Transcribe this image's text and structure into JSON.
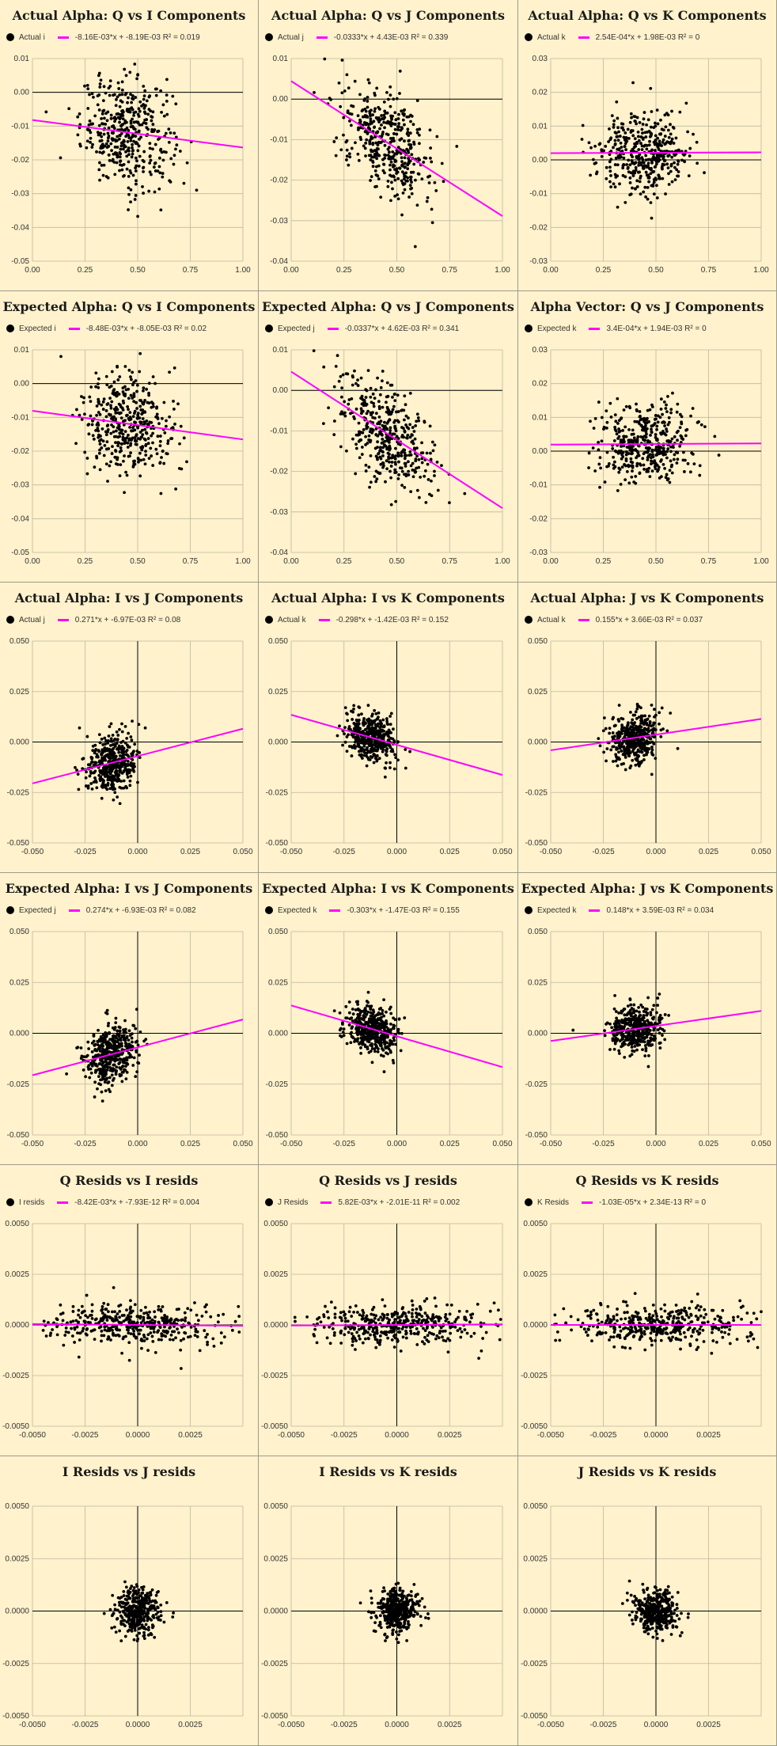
{
  "colors": {
    "background": "#fff2cc",
    "points": "#000000",
    "trendline": "#ff00ff",
    "grid": "#bdb7a0",
    "axis": "#000000"
  },
  "charts": [
    {
      "title": "Actual Alpha: Q vs I Components",
      "legend_series": "Actual i",
      "legend_trend": "-8.16E-03*x + -8.19E-03 R² = 0.019"
    },
    {
      "title": "Actual Alpha: Q vs J Components",
      "legend_series": "Actual j",
      "legend_trend": "-0.0333*x + 4.43E-03 R² = 0.339"
    },
    {
      "title": "Actual Alpha: Q vs K Components",
      "legend_series": "Actual k",
      "legend_trend": "2.54E-04*x + 1.98E-03 R² = 0"
    },
    {
      "title": "Expected Alpha: Q vs I Components",
      "legend_series": "Expected i",
      "legend_trend": "-8.48E-03*x + -8.05E-03 R² = 0.02"
    },
    {
      "title": "Expected Alpha: Q vs J Components",
      "legend_series": "Expected j",
      "legend_trend": "-0.0337*x + 4.62E-03 R² = 0.341"
    },
    {
      "title": "Alpha Vector: Q vs J Components",
      "legend_series": "Expected k",
      "legend_trend": "3.4E-04*x + 1.94E-03 R² = 0"
    },
    {
      "title": "Actual Alpha: I vs J Components",
      "legend_series": "Actual j",
      "legend_trend": "0.271*x + -6.97E-03 R² = 0.08"
    },
    {
      "title": "Actual Alpha: I vs K Components",
      "legend_series": "Actual k",
      "legend_trend": "-0.298*x + -1.42E-03 R² = 0.152"
    },
    {
      "title": "Actual Alpha: J vs K Components",
      "legend_series": "Actual k",
      "legend_trend": "0.155*x + 3.66E-03 R² = 0.037"
    },
    {
      "title": "Expected Alpha: I vs J Components",
      "legend_series": "Expected j",
      "legend_trend": "0.274*x + -6.93E-03 R² = 0.082"
    },
    {
      "title": "Expected Alpha: I vs K Components",
      "legend_series": "Expected k",
      "legend_trend": "-0.303*x + -1.47E-03 R² = 0.155"
    },
    {
      "title": "Expected Alpha: J vs K Components",
      "legend_series": "Expected k",
      "legend_trend": "0.148*x + 3.59E-03 R² = 0.034"
    },
    {
      "title": "Q Resids vs I resids",
      "legend_series": "I resids",
      "legend_trend": "-8.42E-03*x + -7.93E-12 R² = 0.004"
    },
    {
      "title": "Q Resids vs J resids",
      "legend_series": "J Resids",
      "legend_trend": "5.82E-03*x + -2.01E-11 R² = 0.002"
    },
    {
      "title": "Q Resids vs K resids",
      "legend_series": "K Resids",
      "legend_trend": "-1.03E-05*x + 2.34E-13 R² = 0"
    },
    {
      "title": "I Resids vs J resids",
      "legend_series": "",
      "legend_trend": ""
    },
    {
      "title": "I Resids vs K resids",
      "legend_series": "",
      "legend_trend": ""
    },
    {
      "title": "J Resids vs K resids",
      "legend_series": "",
      "legend_trend": ""
    }
  ],
  "chart_data": [
    {
      "type": "scatter",
      "title": "Actual Alpha: Q vs I Components",
      "series_name": "Actual i",
      "xlim": [
        0,
        1
      ],
      "ylim": [
        -0.05,
        0.01
      ],
      "xticks": [
        "0.00",
        "0.25",
        "0.50",
        "0.75",
        "1.00"
      ],
      "yticks": [
        "0.01",
        "0.00",
        "-0.01",
        "-0.02",
        "-0.03",
        "-0.04",
        "-0.05"
      ],
      "trendline": {
        "slope": -0.00816,
        "intercept": -0.00819,
        "r2": 0.019
      },
      "cloud": {
        "cx": 0.45,
        "sx": 0.11,
        "y0": -0.00819,
        "sy": 0.008,
        "n": 420
      }
    },
    {
      "type": "scatter",
      "title": "Actual Alpha: Q vs J Components",
      "series_name": "Actual j",
      "xlim": [
        0,
        1
      ],
      "ylim": [
        -0.04,
        0.01
      ],
      "xticks": [
        "0.00",
        "0.25",
        "0.50",
        "0.75",
        "1.00"
      ],
      "yticks": [
        "0.01",
        "0.00",
        "-0.01",
        "-0.02",
        "-0.03",
        "-0.04"
      ],
      "trendline": {
        "slope": -0.0333,
        "intercept": 0.00443,
        "r2": 0.339
      },
      "cloud": {
        "cx": 0.45,
        "sx": 0.11,
        "y0": 0.00443,
        "sy": 0.006,
        "n": 420
      }
    },
    {
      "type": "scatter",
      "title": "Actual Alpha: Q vs K Components",
      "series_name": "Actual k",
      "xlim": [
        0,
        1
      ],
      "ylim": [
        -0.03,
        0.03
      ],
      "xticks": [
        "0.00",
        "0.25",
        "0.50",
        "0.75",
        "1.00"
      ],
      "yticks": [
        "0.03",
        "0.02",
        "0.01",
        "0.00",
        "-0.01",
        "-0.02",
        "-0.03"
      ],
      "trendline": {
        "slope": 0.000254,
        "intercept": 0.00198,
        "r2": 0.0
      },
      "cloud": {
        "cx": 0.45,
        "sx": 0.11,
        "y0": 0.00198,
        "sy": 0.006,
        "n": 420
      }
    },
    {
      "type": "scatter",
      "title": "Expected Alpha: Q vs I Components",
      "series_name": "Expected i",
      "xlim": [
        0,
        1
      ],
      "ylim": [
        -0.05,
        0.01
      ],
      "xticks": [
        "0.00",
        "0.25",
        "0.50",
        "0.75",
        "1.00"
      ],
      "yticks": [
        "0.01",
        "0.00",
        "-0.01",
        "-0.02",
        "-0.03",
        "-0.04",
        "-0.05"
      ],
      "trendline": {
        "slope": -0.00848,
        "intercept": -0.00805,
        "r2": 0.02
      },
      "cloud": {
        "cx": 0.45,
        "sx": 0.11,
        "y0": -0.00805,
        "sy": 0.008,
        "n": 420
      }
    },
    {
      "type": "scatter",
      "title": "Expected Alpha: Q vs J Components",
      "series_name": "Expected j",
      "xlim": [
        0,
        1
      ],
      "ylim": [
        -0.04,
        0.01
      ],
      "xticks": [
        "0.00",
        "0.25",
        "0.50",
        "0.75",
        "1.00"
      ],
      "yticks": [
        "0.01",
        "0.00",
        "-0.01",
        "-0.02",
        "-0.03",
        "-0.04"
      ],
      "trendline": {
        "slope": -0.0337,
        "intercept": 0.00462,
        "r2": 0.341
      },
      "cloud": {
        "cx": 0.45,
        "sx": 0.11,
        "y0": 0.00462,
        "sy": 0.006,
        "n": 420
      }
    },
    {
      "type": "scatter",
      "title": "Alpha Vector: Q vs J Components",
      "series_name": "Expected k",
      "xlim": [
        0,
        1
      ],
      "ylim": [
        -0.03,
        0.03
      ],
      "xticks": [
        "0.00",
        "0.25",
        "0.50",
        "0.75",
        "1.00"
      ],
      "yticks": [
        "0.03",
        "0.02",
        "0.01",
        "0.00",
        "-0.01",
        "-0.02",
        "-0.03"
      ],
      "trendline": {
        "slope": 0.00034,
        "intercept": 0.00194,
        "r2": 0.0
      },
      "cloud": {
        "cx": 0.45,
        "sx": 0.11,
        "y0": 0.00194,
        "sy": 0.006,
        "n": 420
      }
    },
    {
      "type": "scatter",
      "title": "Actual Alpha: I vs J Components",
      "series_name": "Actual j",
      "xlim": [
        -0.05,
        0.05
      ],
      "ylim": [
        -0.05,
        0.05
      ],
      "xticks": [
        "-0.050",
        "-0.025",
        "0.000",
        "0.025",
        "0.050"
      ],
      "yticks": [
        "0.050",
        "0.025",
        "0.000",
        "-0.025",
        "-0.050"
      ],
      "trendline": {
        "slope": 0.271,
        "intercept": -0.00697,
        "r2": 0.08
      },
      "cloud": {
        "cx": -0.012,
        "sx": 0.006,
        "y0": -0.00697,
        "sy": 0.007,
        "n": 420
      }
    },
    {
      "type": "scatter",
      "title": "Actual Alpha: I vs K Components",
      "series_name": "Actual k",
      "xlim": [
        -0.05,
        0.05
      ],
      "ylim": [
        -0.05,
        0.05
      ],
      "xticks": [
        "-0.050",
        "-0.025",
        "0.000",
        "0.025",
        "0.050"
      ],
      "yticks": [
        "0.050",
        "0.025",
        "0.000",
        "-0.025",
        "-0.050"
      ],
      "trendline": {
        "slope": -0.298,
        "intercept": -0.00142,
        "r2": 0.152
      },
      "cloud": {
        "cx": -0.012,
        "sx": 0.006,
        "y0": -0.00142,
        "sy": 0.006,
        "n": 420
      }
    },
    {
      "type": "scatter",
      "title": "Actual Alpha: J vs K Components",
      "series_name": "Actual k",
      "xlim": [
        -0.05,
        0.05
      ],
      "ylim": [
        -0.05,
        0.05
      ],
      "xticks": [
        "-0.050",
        "-0.025",
        "0.000",
        "0.025",
        "0.050"
      ],
      "yticks": [
        "0.050",
        "0.025",
        "0.000",
        "-0.025",
        "-0.050"
      ],
      "trendline": {
        "slope": 0.155,
        "intercept": 0.00366,
        "r2": 0.037
      },
      "cloud": {
        "cx": -0.01,
        "sx": 0.006,
        "y0": 0.00366,
        "sy": 0.006,
        "n": 420
      }
    },
    {
      "type": "scatter",
      "title": "Expected Alpha: I vs J Components",
      "series_name": "Expected j",
      "xlim": [
        -0.05,
        0.05
      ],
      "ylim": [
        -0.05,
        0.05
      ],
      "xticks": [
        "-0.050",
        "-0.025",
        "0.000",
        "0.025",
        "0.050"
      ],
      "yticks": [
        "0.050",
        "0.025",
        "0.000",
        "-0.025",
        "-0.050"
      ],
      "trendline": {
        "slope": 0.274,
        "intercept": -0.00693,
        "r2": 0.082
      },
      "cloud": {
        "cx": -0.012,
        "sx": 0.006,
        "y0": -0.00693,
        "sy": 0.007,
        "n": 420
      }
    },
    {
      "type": "scatter",
      "title": "Expected Alpha: I vs K Components",
      "series_name": "Expected k",
      "xlim": [
        -0.05,
        0.05
      ],
      "ylim": [
        -0.05,
        0.05
      ],
      "xticks": [
        "-0.050",
        "-0.025",
        "0.000",
        "0.025",
        "0.050"
      ],
      "yticks": [
        "0.050",
        "0.025",
        "0.000",
        "-0.025",
        "-0.050"
      ],
      "trendline": {
        "slope": -0.303,
        "intercept": -0.00147,
        "r2": 0.155
      },
      "cloud": {
        "cx": -0.012,
        "sx": 0.006,
        "y0": -0.00147,
        "sy": 0.006,
        "n": 420
      }
    },
    {
      "type": "scatter",
      "title": "Expected Alpha: J vs K Components",
      "series_name": "Expected k",
      "xlim": [
        -0.05,
        0.05
      ],
      "ylim": [
        -0.05,
        0.05
      ],
      "xticks": [
        "-0.050",
        "-0.025",
        "0.000",
        "0.025",
        "0.050"
      ],
      "yticks": [
        "0.050",
        "0.025",
        "0.000",
        "-0.025",
        "-0.050"
      ],
      "trendline": {
        "slope": 0.148,
        "intercept": 0.00359,
        "r2": 0.034
      },
      "cloud": {
        "cx": -0.01,
        "sx": 0.006,
        "y0": 0.00359,
        "sy": 0.006,
        "n": 420
      }
    },
    {
      "type": "scatter",
      "title": "Q Resids vs I resids",
      "series_name": "I resids",
      "xlim": [
        -0.005,
        0.005
      ],
      "ylim": [
        -0.005,
        0.005
      ],
      "xticks": [
        "-0.0050",
        "-0.0025",
        "0.0000",
        "0.0025"
      ],
      "yticks": [
        "0.0050",
        "0.0025",
        "0.0000",
        "-0.0025",
        "-0.0050"
      ],
      "trendline": {
        "slope": -0.00842,
        "intercept": 0.0,
        "r2": 0.004
      },
      "cloud": {
        "cx": 0.0,
        "sx": 0.0022,
        "y0": 0.0,
        "sy": 0.0005,
        "n": 420
      }
    },
    {
      "type": "scatter",
      "title": "Q Resids vs J resids",
      "series_name": "J Resids",
      "xlim": [
        -0.005,
        0.005
      ],
      "ylim": [
        -0.005,
        0.005
      ],
      "xticks": [
        "-0.0050",
        "-0.0025",
        "0.0000",
        "0.0025"
      ],
      "yticks": [
        "0.0050",
        "0.0025",
        "0.0000",
        "-0.0025",
        "-0.0050"
      ],
      "trendline": {
        "slope": 0.00582,
        "intercept": 0.0,
        "r2": 0.002
      },
      "cloud": {
        "cx": 0.0,
        "sx": 0.0022,
        "y0": 0.0,
        "sy": 0.0005,
        "n": 420
      }
    },
    {
      "type": "scatter",
      "title": "Q Resids vs K resids",
      "series_name": "K Resids",
      "xlim": [
        -0.005,
        0.005
      ],
      "ylim": [
        -0.005,
        0.005
      ],
      "xticks": [
        "-0.0050",
        "-0.0025",
        "0.0000",
        "0.0025"
      ],
      "yticks": [
        "0.0050",
        "0.0025",
        "0.0000",
        "-0.0025",
        "-0.0050"
      ],
      "trendline": {
        "slope": -1.03e-05,
        "intercept": 0.0,
        "r2": 0.0
      },
      "cloud": {
        "cx": 0.0,
        "sx": 0.0022,
        "y0": 0.0,
        "sy": 0.0005,
        "n": 420
      }
    },
    {
      "type": "scatter",
      "title": "I Resids vs J resids",
      "series_name": "",
      "xlim": [
        -0.005,
        0.005
      ],
      "ylim": [
        -0.005,
        0.005
      ],
      "xticks": [
        "-0.0050",
        "-0.0025",
        "0.0000",
        "0.0025"
      ],
      "yticks": [
        "0.0050",
        "0.0025",
        "0.0000",
        "-0.0025",
        "-0.0050"
      ],
      "trendline": null,
      "cloud": {
        "cx": 0.0,
        "sx": 0.0005,
        "y0": 0.0,
        "sy": 0.0005,
        "n": 400
      }
    },
    {
      "type": "scatter",
      "title": "I Resids vs K resids",
      "series_name": "",
      "xlim": [
        -0.005,
        0.005
      ],
      "ylim": [
        -0.005,
        0.005
      ],
      "xticks": [
        "-0.0050",
        "-0.0025",
        "0.0000",
        "0.0025"
      ],
      "yticks": [
        "0.0050",
        "0.0025",
        "0.0000",
        "-0.0025",
        "-0.0050"
      ],
      "trendline": null,
      "cloud": {
        "cx": 0.0,
        "sx": 0.0005,
        "y0": 0.0,
        "sy": 0.0005,
        "n": 400
      }
    },
    {
      "type": "scatter",
      "title": "J Resids vs K resids",
      "series_name": "",
      "xlim": [
        -0.005,
        0.005
      ],
      "ylim": [
        -0.005,
        0.005
      ],
      "xticks": [
        "-0.0050",
        "-0.0025",
        "0.0000",
        "0.0025"
      ],
      "yticks": [
        "0.0050",
        "0.0025",
        "0.0000",
        "-0.0025",
        "-0.0050"
      ],
      "trendline": null,
      "cloud": {
        "cx": 0.0,
        "sx": 0.0005,
        "y0": 0.0,
        "sy": 0.0005,
        "n": 400
      }
    }
  ]
}
